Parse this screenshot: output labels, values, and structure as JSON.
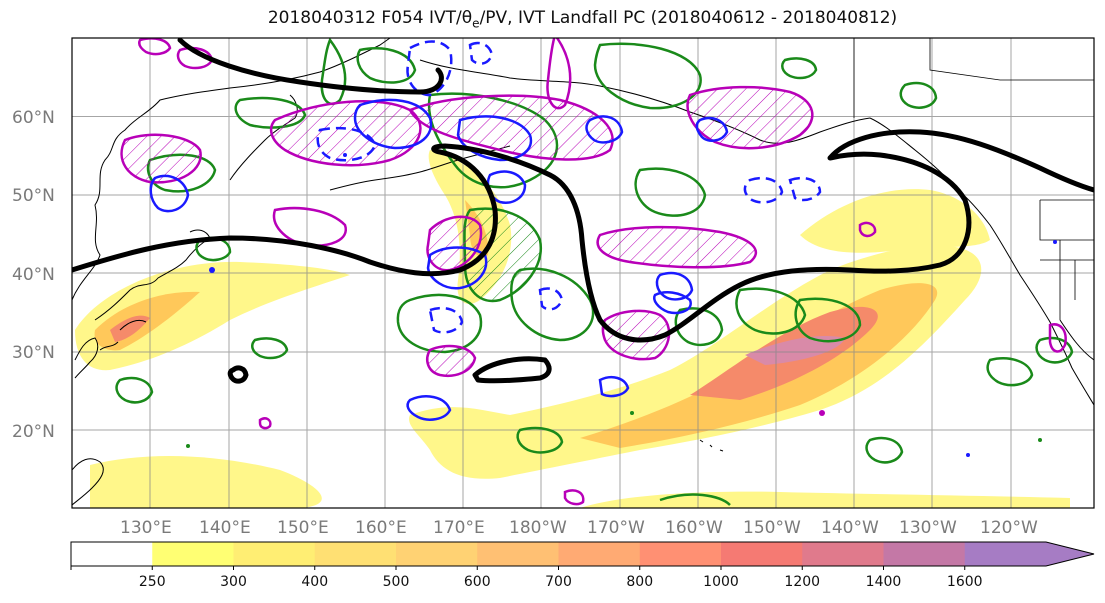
{
  "title": "2018040312 F054 IVT/θe/PV, IVT Landfall PC (2018040612 - 2018040812)",
  "map": {
    "lat_labels": [
      "60°N",
      "50°N",
      "40°N",
      "30°N",
      "20°N"
    ],
    "lon_labels": [
      "130°E",
      "140°E",
      "150°E",
      "160°E",
      "170°E",
      "180°W",
      "170°W",
      "160°W",
      "150°W",
      "140°W",
      "130°W",
      "120°W"
    ]
  },
  "colorbar": {
    "levels": [
      "250",
      "300",
      "400",
      "500",
      "600",
      "700",
      "800",
      "1000",
      "1200",
      "1400",
      "1600"
    ],
    "colors": [
      "#ffff73",
      "#ffee73",
      "#ffe073",
      "#ffd273",
      "#ffc073",
      "#ffaa73",
      "#ff9073",
      "#f57a73",
      "#e07a8c",
      "#c478a6",
      "#a67cc4"
    ]
  },
  "contour_colors": {
    "ivt_fill_low": "#fff78a",
    "ivt_fill_mid": "#ffc85a",
    "ivt_fill_high": "#f58a6a",
    "ivt_fill_peak": "#d98aa8",
    "landfall_pc": "#000000",
    "theta_e": "#1a8a1a",
    "pv_positive": "#b800b8",
    "pv_negative": "#1a1aff"
  }
}
